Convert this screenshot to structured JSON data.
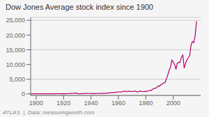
{
  "chart_data": {
    "type": "line",
    "title": "Dow Jones Average stock index since 1900",
    "annotations": [
      "ATLAS  |  Data: measuringworth.com"
    ],
    "color": "#b5006e",
    "grid": true,
    "xlim": [
      1896,
      2020
    ],
    "xticks": [
      1900,
      1920,
      1940,
      1960,
      1980,
      2000
    ],
    "ylim": [
      -500,
      26000
    ],
    "yticks": [
      0,
      {
        "value": 5000,
        "label": "5,000"
      },
      {
        "value": 10000,
        "label": "10,000"
      },
      {
        "value": 15000,
        "label": "15,000"
      },
      {
        "value": 20000,
        "label": "20,000"
      },
      {
        "value": 25000,
        "label": "25,000"
      }
    ],
    "x": [
      1896,
      1897,
      1898,
      1899,
      1900,
      1901,
      1902,
      1903,
      1904,
      1905,
      1906,
      1907,
      1908,
      1909,
      1910,
      1911,
      1912,
      1913,
      1914,
      1915,
      1916,
      1917,
      1918,
      1919,
      1920,
      1921,
      1922,
      1923,
      1924,
      1925,
      1926,
      1927,
      1928,
      1929,
      1930,
      1931,
      1932,
      1933,
      1934,
      1935,
      1936,
      1937,
      1938,
      1939,
      1940,
      1941,
      1942,
      1943,
      1944,
      1945,
      1946,
      1947,
      1948,
      1949,
      1950,
      1951,
      1952,
      1953,
      1954,
      1955,
      1956,
      1957,
      1958,
      1959,
      1960,
      1961,
      1962,
      1963,
      1964,
      1965,
      1966,
      1967,
      1968,
      1969,
      1970,
      1971,
      1972,
      1973,
      1974,
      1975,
      1976,
      1977,
      1978,
      1979,
      1980,
      1981,
      1982,
      1983,
      1984,
      1985,
      1986,
      1987,
      1988,
      1989,
      1990,
      1991,
      1992,
      1993,
      1994,
      1995,
      1996,
      1997,
      1998,
      1999,
      2000,
      2001,
      2002,
      2003,
      2004,
      2005,
      2006,
      2007,
      2008,
      2009,
      2010,
      2011,
      2012,
      2013,
      2014,
      2015,
      2016,
      2017
    ],
    "values": [
      40,
      45,
      52,
      58,
      60,
      65,
      62,
      50,
      55,
      70,
      75,
      53,
      75,
      90,
      82,
      85,
      88,
      75,
      55,
      99,
      95,
      74,
      82,
      107,
      72,
      72,
      98,
      96,
      120,
      157,
      166,
      203,
      300,
      248,
      165,
      77,
      60,
      100,
      107,
      150,
      184,
      180,
      155,
      150,
      130,
      112,
      120,
      136,
      150,
      195,
      177,
      178,
      180,
      200,
      235,
      276,
      292,
      281,
      405,
      490,
      500,
      436,
      584,
      679,
      616,
      735,
      653,
      763,
      874,
      969,
      786,
      906,
      944,
      800,
      839,
      890,
      1020,
      851,
      616,
      852,
      1005,
      831,
      805,
      839,
      963,
      875,
      1047,
      1259,
      1212,
      1547,
      1896,
      1939,
      2169,
      2753,
      2634,
      3169,
      3301,
      3754,
      3834,
      5117,
      6448,
      7908,
      9181,
      11497,
      10787,
      10022,
      8342,
      10454,
      10783,
      10718,
      12463,
      13265,
      8776,
      10428,
      11578,
      12218,
      13104,
      16577,
      17823,
      17425,
      19763,
      24719
    ]
  }
}
